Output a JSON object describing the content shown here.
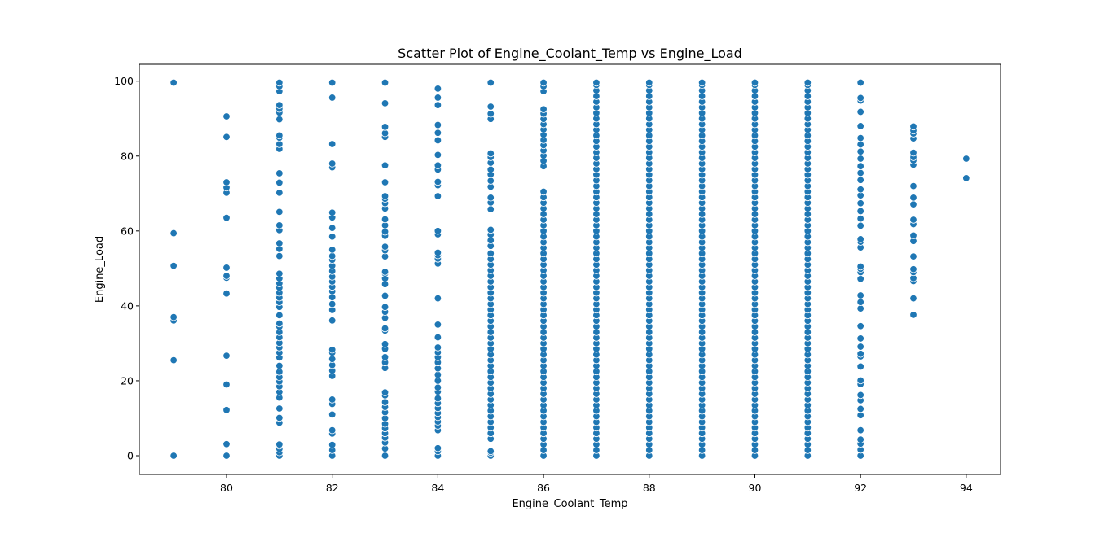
{
  "chart_data": {
    "type": "scatter",
    "title": "Scatter Plot of Engine_Coolant_Temp vs Engine_Load",
    "xlabel": "Engine_Coolant_Temp",
    "ylabel": "Engine_Load",
    "xlim": [
      78.35,
      94.65
    ],
    "ylim": [
      -5.0,
      104.5
    ],
    "xticks": [
      80,
      82,
      84,
      86,
      88,
      90,
      92,
      94
    ],
    "yticks": [
      0,
      20,
      40,
      60,
      80,
      100
    ],
    "grid": false,
    "marker_color": "#1f77b4",
    "points_by_x": [
      {
        "x": 79,
        "y": [
          0,
          25.5,
          36.1,
          37.0,
          50.7,
          59.4,
          99.6
        ]
      },
      {
        "x": 80,
        "y": [
          0,
          3.1,
          12.2,
          19.0,
          26.7,
          43.3,
          47.5,
          48.0,
          50.2,
          63.5,
          70.2,
          71.6,
          73.0,
          85.1,
          90.6
        ]
      },
      {
        "x": 81,
        "y": [
          0,
          0.9,
          1.8,
          2.7,
          3.0,
          8.8,
          10.1,
          12.6,
          15.5,
          17.0,
          18.5,
          19.8,
          21.0,
          22.4,
          24.0,
          26.2,
          27.5,
          28.9,
          30.1,
          31.6,
          33.0,
          34.4,
          35.3,
          37.5,
          39.7,
          41.0,
          42.2,
          43.5,
          44.8,
          46.0,
          47.3,
          48.6,
          53.3,
          55.2,
          56.7,
          60.2,
          61.5,
          65.1,
          70.2,
          72.9,
          75.4,
          81.9,
          83.2,
          84.9,
          85.5,
          89.8,
          91.6,
          92.6,
          93.6,
          97.3,
          98.6,
          99.6
        ]
      },
      {
        "x": 82,
        "y": [
          0,
          1.5,
          2.9,
          5.9,
          6.8,
          11.0,
          13.8,
          15.0,
          21.3,
          22.7,
          24.2,
          25.8,
          27.5,
          28.3,
          36.1,
          38.9,
          40.5,
          42.3,
          43.9,
          45.1,
          46.5,
          47.8,
          49.3,
          50.7,
          52.3,
          53.3,
          55.0,
          58.5,
          60.8,
          63.6,
          64.9,
          77.0,
          78.0,
          83.2,
          95.6,
          99.6
        ]
      },
      {
        "x": 83,
        "y": [
          0,
          1.9,
          3.5,
          4.8,
          6.0,
          7.3,
          8.5,
          10.0,
          11.6,
          13.0,
          14.3,
          16.1,
          16.9,
          23.4,
          24.9,
          26.3,
          28.5,
          29.8,
          33.4,
          34.0,
          36.8,
          38.4,
          39.7,
          42.7,
          45.8,
          47.3,
          48.6,
          49.1,
          53.2,
          54.8,
          55.8,
          58.7,
          59.8,
          61.5,
          63.1,
          66.0,
          67.4,
          68.6,
          69.3,
          73.0,
          77.5,
          85.1,
          86.1,
          87.8,
          94.1,
          99.6
        ]
      },
      {
        "x": 84,
        "y": [
          0,
          1.2,
          2.0,
          6.8,
          8.0,
          9.1,
          10.3,
          11.4,
          12.7,
          14.0,
          15.3,
          17.1,
          18.2,
          20.0,
          21.6,
          23.3,
          24.9,
          26.3,
          27.6,
          28.9,
          31.6,
          35.0,
          42.0,
          51.3,
          52.6,
          53.5,
          54.2,
          59.1,
          60.0,
          69.3,
          72.2,
          73.1,
          76.4,
          77.5,
          80.3,
          84.2,
          86.2,
          88.3,
          93.6,
          95.6,
          98.0
        ]
      },
      {
        "x": 85,
        "y": [
          0,
          0.8,
          1.2,
          4.5,
          6.0,
          7.5,
          9.0,
          10.5,
          12.0,
          13.5,
          15.0,
          16.5,
          18.0,
          19.5,
          21.0,
          22.5,
          24.0,
          25.5,
          27.0,
          28.5,
          30.0,
          31.5,
          33.0,
          34.5,
          36.0,
          37.5,
          39.0,
          40.5,
          42.0,
          43.5,
          45.0,
          46.5,
          48.0,
          49.5,
          51.0,
          52.5,
          54.0,
          56.0,
          57.5,
          59.0,
          60.3,
          65.8,
          67.6,
          68.9,
          71.8,
          73.4,
          75.1,
          76.4,
          78.2,
          79.7,
          80.7,
          89.9,
          91.3,
          93.2,
          99.6
        ]
      },
      {
        "x": 86,
        "y": [
          0,
          1.5,
          3.0,
          4.5,
          6.0,
          7.5,
          9.0,
          10.5,
          12.0,
          13.5,
          15.0,
          16.5,
          18.0,
          19.5,
          21.0,
          22.5,
          24.0,
          25.5,
          27.0,
          28.5,
          30.0,
          31.5,
          33.0,
          34.5,
          36.0,
          37.5,
          39.0,
          40.5,
          42.0,
          43.5,
          45.0,
          46.5,
          48.0,
          49.5,
          51.0,
          52.5,
          54.0,
          55.5,
          57.0,
          58.5,
          60.0,
          61.5,
          63.0,
          64.5,
          66.0,
          67.5,
          69.0,
          70.5,
          77.3,
          78.7,
          80.1,
          81.5,
          82.9,
          84.3,
          85.7,
          87.1,
          88.5,
          89.9,
          91.3,
          92.5,
          97.3,
          98.6,
          99.6
        ]
      },
      {
        "x": 87,
        "y": [
          0,
          1.5,
          3.0,
          4.5,
          6.0,
          7.5,
          9.0,
          10.5,
          12.0,
          13.5,
          15.0,
          16.5,
          18.0,
          19.5,
          21.0,
          22.5,
          24.0,
          25.5,
          27.0,
          28.5,
          30.0,
          31.5,
          33.0,
          34.5,
          36.0,
          37.5,
          39.0,
          40.5,
          42.0,
          43.5,
          45.0,
          46.5,
          48.0,
          49.5,
          51.0,
          52.5,
          54.0,
          55.5,
          57.0,
          58.5,
          60.0,
          61.5,
          63.0,
          64.5,
          66.0,
          67.5,
          69.0,
          70.5,
          72.0,
          73.5,
          75.0,
          76.5,
          78.0,
          79.5,
          81.0,
          82.5,
          84.0,
          85.5,
          87.0,
          88.5,
          90.0,
          91.5,
          93.0,
          94.5,
          96.0,
          97.5,
          99.0,
          99.6
        ]
      },
      {
        "x": 88,
        "y": [
          0,
          1.5,
          3.0,
          4.5,
          6.0,
          7.5,
          9.0,
          10.5,
          12.0,
          13.5,
          15.0,
          16.5,
          18.0,
          19.5,
          21.0,
          22.5,
          24.0,
          25.5,
          27.0,
          28.5,
          30.0,
          31.5,
          33.0,
          34.5,
          36.0,
          37.5,
          39.0,
          40.5,
          42.0,
          43.5,
          45.0,
          46.5,
          48.0,
          49.5,
          51.0,
          52.5,
          54.0,
          55.5,
          57.0,
          58.5,
          60.0,
          61.5,
          63.0,
          64.5,
          66.0,
          67.5,
          69.0,
          70.5,
          72.0,
          73.5,
          75.0,
          76.5,
          78.0,
          79.5,
          81.0,
          82.5,
          84.0,
          85.5,
          87.0,
          88.5,
          90.0,
          91.5,
          93.0,
          94.5,
          96.0,
          97.5,
          99.0,
          99.6
        ]
      },
      {
        "x": 89,
        "y": [
          0,
          1.5,
          3.0,
          4.5,
          6.0,
          7.5,
          9.0,
          10.5,
          12.0,
          13.5,
          15.0,
          16.5,
          18.0,
          19.5,
          21.0,
          22.5,
          24.0,
          25.5,
          27.0,
          28.5,
          30.0,
          31.5,
          33.0,
          34.5,
          36.0,
          37.5,
          39.0,
          40.5,
          42.0,
          43.5,
          45.0,
          46.5,
          48.0,
          49.5,
          51.0,
          52.5,
          54.0,
          55.5,
          57.0,
          58.5,
          60.0,
          61.5,
          63.0,
          64.5,
          66.0,
          67.5,
          69.0,
          70.5,
          72.0,
          73.5,
          75.0,
          76.5,
          78.0,
          79.5,
          81.0,
          82.5,
          84.0,
          85.5,
          87.0,
          88.5,
          90.0,
          91.5,
          93.0,
          94.5,
          96.0,
          97.5,
          99.0,
          99.6
        ]
      },
      {
        "x": 90,
        "y": [
          0,
          1.5,
          3.0,
          4.5,
          6.0,
          7.5,
          9.0,
          10.5,
          12.0,
          13.5,
          15.0,
          16.5,
          18.0,
          19.5,
          21.0,
          22.5,
          24.0,
          25.5,
          27.0,
          28.5,
          30.0,
          31.5,
          33.0,
          34.5,
          36.0,
          37.5,
          39.0,
          40.5,
          42.0,
          43.5,
          45.0,
          46.5,
          48.0,
          49.5,
          51.0,
          52.5,
          54.0,
          55.5,
          57.0,
          58.5,
          60.0,
          61.5,
          63.0,
          64.5,
          66.0,
          67.5,
          69.0,
          70.5,
          72.0,
          73.5,
          75.0,
          76.5,
          78.0,
          79.5,
          81.0,
          82.5,
          84.0,
          85.5,
          87.0,
          88.5,
          90.0,
          91.5,
          93.0,
          94.5,
          96.0,
          97.5,
          99.0,
          99.6
        ]
      },
      {
        "x": 91,
        "y": [
          0,
          1.5,
          3.0,
          4.5,
          6.0,
          7.5,
          9.0,
          10.5,
          12.0,
          13.5,
          15.0,
          16.5,
          18.0,
          19.5,
          21.0,
          22.5,
          24.0,
          25.5,
          27.0,
          28.5,
          30.0,
          31.5,
          33.0,
          34.5,
          36.0,
          37.5,
          39.0,
          40.5,
          42.0,
          43.5,
          45.0,
          46.5,
          48.0,
          49.5,
          51.0,
          52.5,
          54.0,
          55.5,
          57.0,
          58.5,
          60.0,
          61.5,
          63.0,
          64.5,
          66.0,
          67.5,
          69.0,
          70.5,
          72.0,
          73.5,
          75.0,
          76.5,
          78.0,
          79.5,
          81.0,
          82.5,
          84.0,
          85.5,
          87.0,
          88.5,
          90.0,
          91.5,
          93.0,
          94.5,
          96.0,
          97.5,
          99.0,
          99.6
        ]
      },
      {
        "x": 92,
        "y": [
          0,
          1.6,
          3.2,
          4.3,
          6.8,
          10.8,
          12.5,
          14.8,
          16.2,
          19.1,
          20.1,
          23.8,
          26.5,
          27.2,
          29.1,
          31.3,
          34.6,
          39.3,
          41.0,
          42.8,
          47.2,
          49.0,
          49.9,
          50.5,
          55.6,
          57.1,
          57.8,
          61.4,
          63.3,
          65.3,
          67.4,
          69.5,
          71.1,
          73.6,
          75.5,
          77.3,
          79.3,
          81.2,
          83.1,
          84.8,
          88.0,
          91.8,
          94.8,
          95.5,
          99.6
        ]
      },
      {
        "x": 93,
        "y": [
          37.6,
          42.0,
          46.6,
          47.4,
          49.0,
          49.8,
          53.2,
          57.3,
          58.8,
          61.8,
          63.0,
          67.1,
          68.9,
          72.0,
          77.7,
          78.8,
          79.7,
          80.9,
          84.7,
          86.0,
          86.8,
          87.9
        ]
      },
      {
        "x": 94,
        "y": [
          74.1,
          79.3
        ]
      }
    ]
  }
}
